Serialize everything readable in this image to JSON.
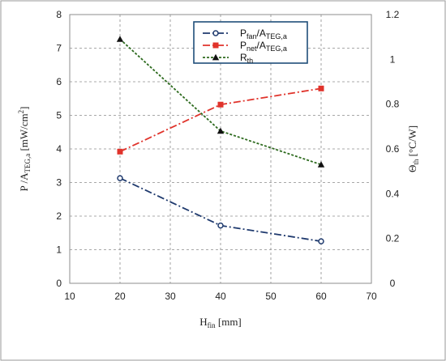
{
  "chart_data": {
    "type": "line",
    "x": [
      20,
      40,
      60
    ],
    "xlabel": {
      "main": "H",
      "sub": "fin",
      "rest": " [mm]"
    },
    "xlim": [
      10,
      70
    ],
    "xticks": [
      10,
      20,
      30,
      40,
      50,
      60,
      70
    ],
    "ylabel_left": {
      "pre": "P /A",
      "sub": "TEG,a",
      "post": " [mW/cm",
      "sup": "2",
      "end": "]"
    },
    "ylim_left": [
      0,
      8
    ],
    "yticks_left": [
      0,
      1,
      2,
      3,
      4,
      5,
      6,
      7,
      8
    ],
    "ylabel_right": {
      "pre": "Θ",
      "sub": "th",
      "post": " [°C/W]"
    },
    "ylim_right": [
      0,
      1.2
    ],
    "yticks_right": [
      "0",
      "0.2",
      "0.4",
      "0.6",
      "0.8",
      "1",
      "1.2"
    ],
    "yticks_right_values": [
      0,
      0.2,
      0.4,
      0.6,
      0.8,
      1.0,
      1.2
    ],
    "grid": true,
    "legend_position": "top-center",
    "series": [
      {
        "name": "Pfan/ATEG,a",
        "legend": {
          "main": "P",
          "sub1": "fan",
          "mid": "/A",
          "sub2": "TEG,a"
        },
        "axis": "left",
        "values": [
          3.13,
          1.72,
          1.25
        ],
        "color": "#1f3a6e",
        "dash": "9 3 2 3",
        "marker": "circle"
      },
      {
        "name": "Pnet/ATEG,a",
        "legend": {
          "main": "P",
          "sub1": "net",
          "mid": "/A",
          "sub2": "TEG,a"
        },
        "axis": "left",
        "values": [
          3.92,
          5.32,
          5.8
        ],
        "color": "#e0332b",
        "dash": "9 3 2 3",
        "marker": "square"
      },
      {
        "name": "Rth",
        "legend": {
          "main": "R",
          "sub1": "th",
          "mid": "",
          "sub2": ""
        },
        "axis": "right",
        "values": [
          1.09,
          0.68,
          0.53
        ],
        "color": "#2e6b1f",
        "dash": "3 2",
        "marker": "triangle"
      }
    ]
  }
}
